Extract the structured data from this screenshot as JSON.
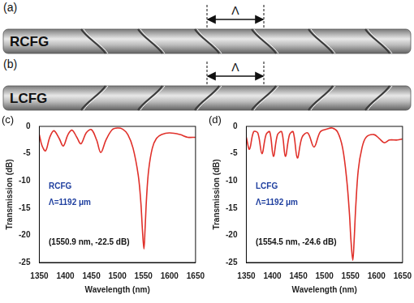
{
  "panels": [
    {
      "letter": "(a)",
      "label": "RCFG",
      "period": "Λ"
    },
    {
      "letter": "(b)",
      "label": "LCFG",
      "period": "Λ"
    }
  ],
  "chart_data": [
    {
      "letter": "(c)",
      "type": "line",
      "x_label": "Wavelength (nm)",
      "y_label": "Transmission (dB)",
      "annotations": [
        "RCFG",
        "Λ=1192 μm",
        "(1550.9 nm, -22.5 dB)"
      ],
      "x": [
        1350,
        1355,
        1362,
        1370,
        1378,
        1388,
        1396,
        1405,
        1413,
        1422,
        1430,
        1440,
        1450,
        1460,
        1468,
        1478,
        1490,
        1500,
        1510,
        1520,
        1530,
        1540,
        1545,
        1548,
        1550.9,
        1553,
        1556,
        1560,
        1567,
        1575,
        1585,
        1600,
        1620,
        1635,
        1650
      ],
      "values": [
        -1.5,
        -3.5,
        -4.5,
        -2,
        -0.8,
        -2.2,
        -3.6,
        -1.5,
        -0.7,
        -2,
        -3.2,
        -1.2,
        -0.6,
        -2.5,
        -4.8,
        -2.5,
        -0.6,
        -0.3,
        -0.5,
        -1.5,
        -4,
        -9,
        -14,
        -19,
        -22.5,
        -19,
        -13,
        -8,
        -4,
        -2.2,
        -1.5,
        -1.2,
        -1.5,
        -2,
        -2
      ],
      "color": "#e0302a",
      "xlim": [
        1350,
        1650
      ],
      "xticks": [
        1350,
        1400,
        1450,
        1500,
        1550,
        1600,
        1650
      ],
      "ylim": [
        -25,
        0
      ],
      "yticks": [
        -25,
        -20,
        -15,
        -10,
        -5,
        0
      ],
      "grid": false
    },
    {
      "letter": "(d)",
      "type": "line",
      "x_label": "Wavelength (nm)",
      "y_label": "Transmission (dB)",
      "annotations": [
        "LCFG",
        "Λ=1192 μm",
        "(1554.5 nm, -24.6 dB)"
      ],
      "x": [
        1350,
        1356,
        1364,
        1372,
        1380,
        1388,
        1395,
        1402,
        1410,
        1418,
        1425,
        1433,
        1440,
        1448,
        1457,
        1468,
        1480,
        1492,
        1505,
        1515,
        1525,
        1535,
        1543,
        1548,
        1551,
        1554.5,
        1557,
        1560,
        1565,
        1572,
        1580,
        1595,
        1605,
        1615,
        1625,
        1640,
        1650
      ],
      "values": [
        -2,
        -4.2,
        -1,
        -1.2,
        -5,
        -1.5,
        -1,
        -5.5,
        -1.5,
        -1,
        -5.5,
        -1.5,
        -1,
        -5.8,
        -2,
        -1.2,
        -3.8,
        -1,
        -0.5,
        -0.3,
        -1,
        -4,
        -10,
        -16,
        -21,
        -24.6,
        -21,
        -15,
        -8,
        -4,
        -2,
        -1.5,
        -2.2,
        -3,
        -2.5,
        -2.5,
        -2.3
      ],
      "color": "#e0302a",
      "xlim": [
        1350,
        1650
      ],
      "xticks": [
        1350,
        1400,
        1450,
        1500,
        1550,
        1600,
        1650
      ],
      "ylim": [
        -25,
        0
      ],
      "yticks": [
        -25,
        -20,
        -15,
        -10,
        -5,
        0
      ],
      "grid": false
    }
  ]
}
